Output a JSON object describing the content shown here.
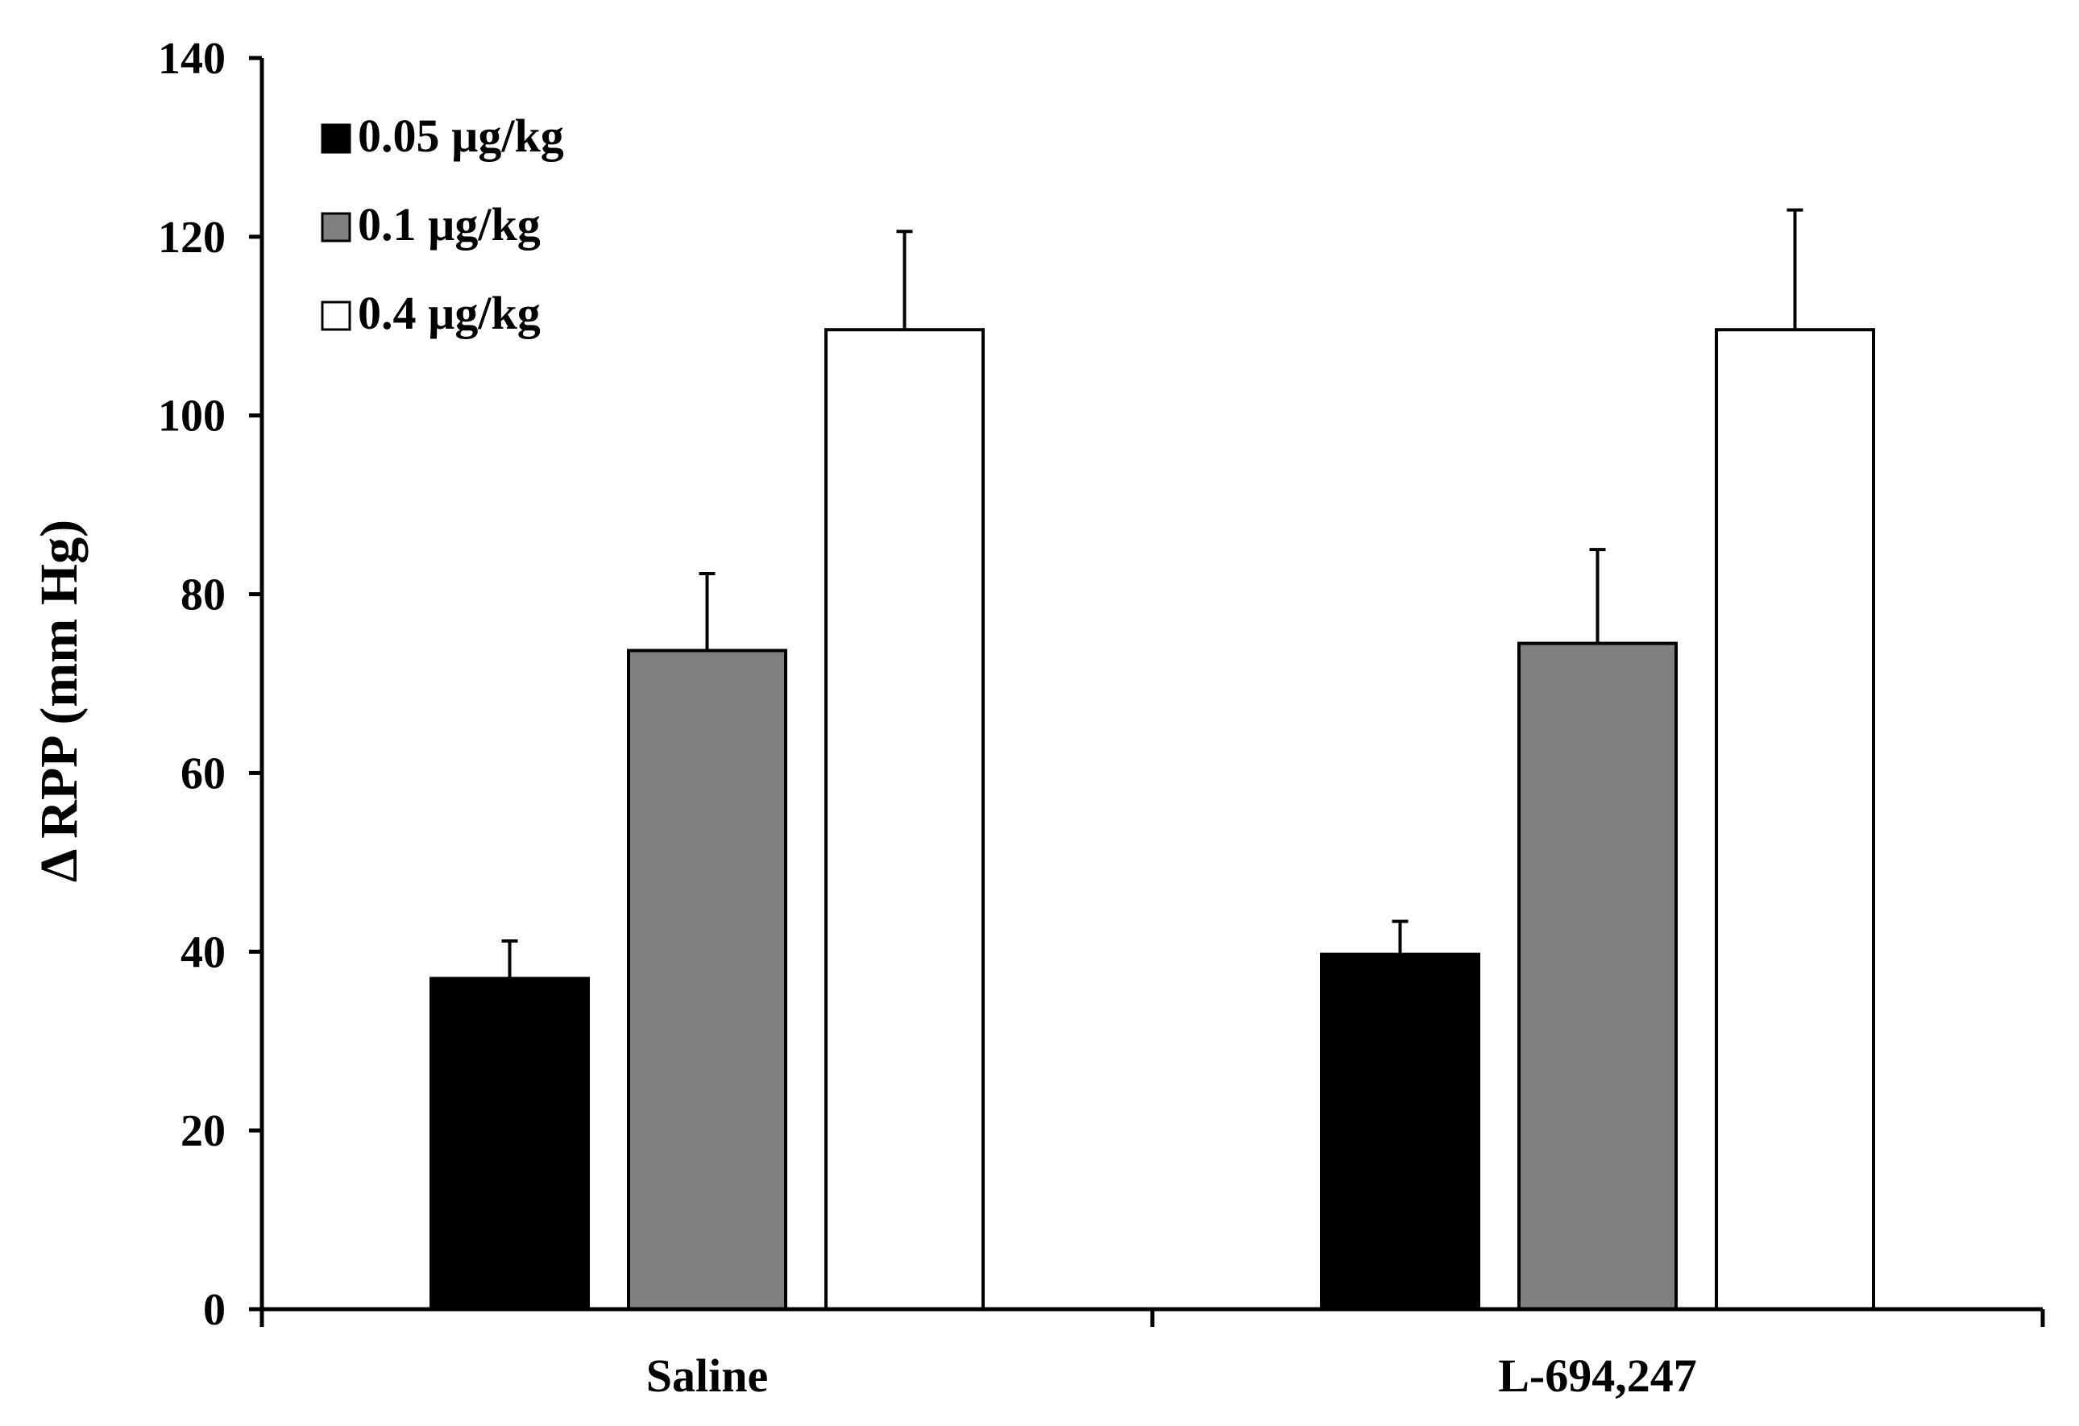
{
  "chart_data": {
    "type": "bar",
    "title": "",
    "xlabel": "",
    "ylabel": "Δ RPP (mm Hg)",
    "ylim": [
      0,
      140
    ],
    "yticks": [
      0,
      20,
      40,
      60,
      80,
      100,
      120,
      140
    ],
    "grid": false,
    "legend_position": "top-left",
    "categories": [
      "Saline",
      "L-694,247"
    ],
    "series": [
      {
        "name": "0.05 µg/kg",
        "color": "#000000",
        "values": [
          37,
          39.7
        ],
        "errors": [
          4.2,
          3.7
        ]
      },
      {
        "name": "0.1 µg/kg",
        "color": "#808080",
        "values": [
          73.7,
          74.5
        ],
        "errors": [
          8.6,
          10.5
        ]
      },
      {
        "name": "0.4 µg/kg",
        "color": "#ffffff",
        "values": [
          109.6,
          109.6
        ],
        "errors": [
          11,
          13.4
        ]
      }
    ]
  }
}
